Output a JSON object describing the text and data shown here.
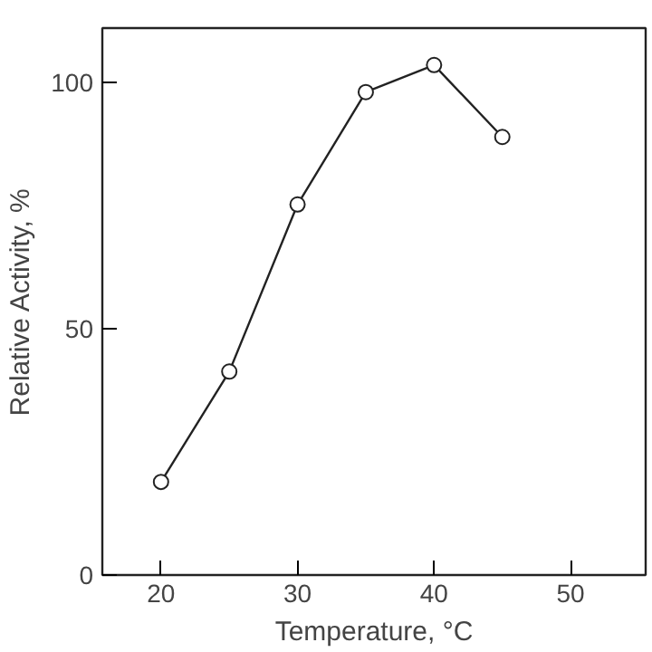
{
  "chart_data": {
    "type": "line",
    "xlabel": "Temperature, °C",
    "ylabel": "Relative Activity, %",
    "x": [
      20,
      25,
      30,
      35,
      40,
      45
    ],
    "series": [
      {
        "color": "#222222",
        "values": [
          18.9,
          41.3,
          75.2,
          98.0,
          103.5,
          88.9
        ]
      }
    ],
    "xlim": [
      15.7,
      55.5
    ],
    "xticks": [
      20,
      30,
      40,
      50
    ],
    "ylim": [
      0,
      111
    ],
    "yticks": [
      {
        "value": 0,
        "label": "0"
      },
      50,
      100
    ],
    "marker": "circle",
    "line_style": "solid"
  }
}
